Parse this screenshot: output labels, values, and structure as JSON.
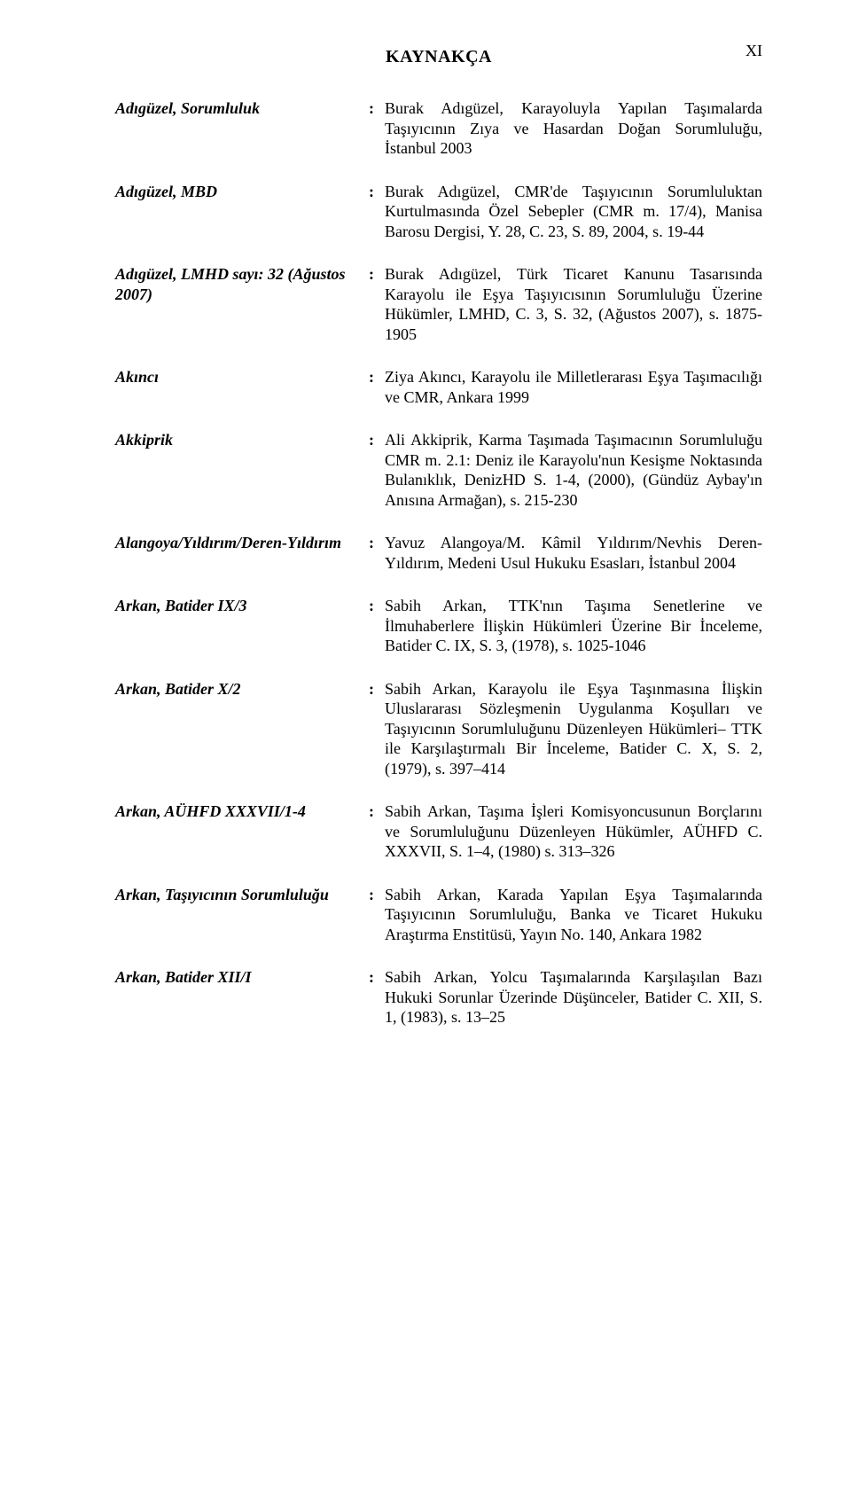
{
  "page_number": "XI",
  "title": "KAYNAKÇA",
  "entries": [
    {
      "key": "Adıgüzel, Sorumluluk",
      "value": "Burak Adıgüzel, Karayoluyla Yapılan Taşımalarda Taşıyıcının Zıya ve Hasardan Doğan Sorumluluğu, İstanbul 2003"
    },
    {
      "key": "Adıgüzel, MBD",
      "value": "Burak Adıgüzel, CMR'de Taşıyıcının Sorumluluktan Kurtulmasında Özel Sebepler (CMR m. 17/4), Manisa Barosu Dergisi, Y. 28, C. 23, S. 89, 2004, s. 19-44"
    },
    {
      "key": "Adıgüzel, LMHD sayı: 32 (Ağustos 2007)",
      "value": "Burak Adıgüzel, Türk Ticaret Kanunu Tasarısında Karayolu ile Eşya Taşıyıcısının Sorumluluğu Üzerine Hükümler, LMHD, C. 3, S. 32, (Ağustos 2007), s. 1875-1905"
    },
    {
      "key": "Akıncı",
      "value": "Ziya Akıncı, Karayolu ile Milletlerarası Eşya Taşımacılığı ve CMR, Ankara 1999"
    },
    {
      "key": "Akkiprik",
      "value": "Ali Akkiprik, Karma Taşımada Taşımacının Sorumluluğu CMR m. 2.1: Deniz ile Karayolu'nun Kesişme Noktasında Bulanıklık, DenizHD S. 1-4, (2000), (Gündüz Aybay'ın Anısına Armağan), s. 215-230"
    },
    {
      "key": "Alangoya/Yıldırım/Deren-Yıldırım",
      "value": "Yavuz Alangoya/M. Kâmil Yıldırım/Nevhis Deren-Yıldırım, Medeni Usul Hukuku Esasları, İstanbul 2004"
    },
    {
      "key": "Arkan, Batider IX/3",
      "value": "Sabih Arkan, TTK'nın Taşıma Senetlerine ve İlmuhaberlere İlişkin Hükümleri Üzerine Bir İnceleme, Batider C. IX, S. 3, (1978), s. 1025-1046"
    },
    {
      "key": "Arkan, Batider X/2",
      "value": "Sabih Arkan, Karayolu ile Eşya Taşınmasına İlişkin Uluslararası Sözleşmenin Uygulanma Koşulları ve Taşıyıcının Sorumluluğunu Düzenleyen Hükümleri– TTK ile Karşılaştırmalı Bir İnceleme, Batider C. X, S. 2, (1979), s. 397–414"
    },
    {
      "key": "Arkan, AÜHFD XXXVII/1-4",
      "value": "Sabih Arkan, Taşıma İşleri Komisyoncusunun Borçlarını ve Sorumluluğunu Düzenleyen Hükümler, AÜHFD C. XXXVII, S. 1–4, (1980) s. 313–326"
    },
    {
      "key": "Arkan, Taşıyıcının Sorumluluğu",
      "value": "Sabih Arkan, Karada Yapılan Eşya Taşımalarında Taşıyıcının Sorumluluğu, Banka ve Ticaret Hukuku Araştırma Enstitüsü, Yayın No. 140, Ankara 1982"
    },
    {
      "key": "Arkan, Batider XII/I",
      "value": "Sabih Arkan, Yolcu Taşımalarında Karşılaşılan Bazı Hukuki Sorunlar Üzerinde Düşünceler, Batider C. XII, S. 1, (1983), s. 13–25"
    }
  ]
}
